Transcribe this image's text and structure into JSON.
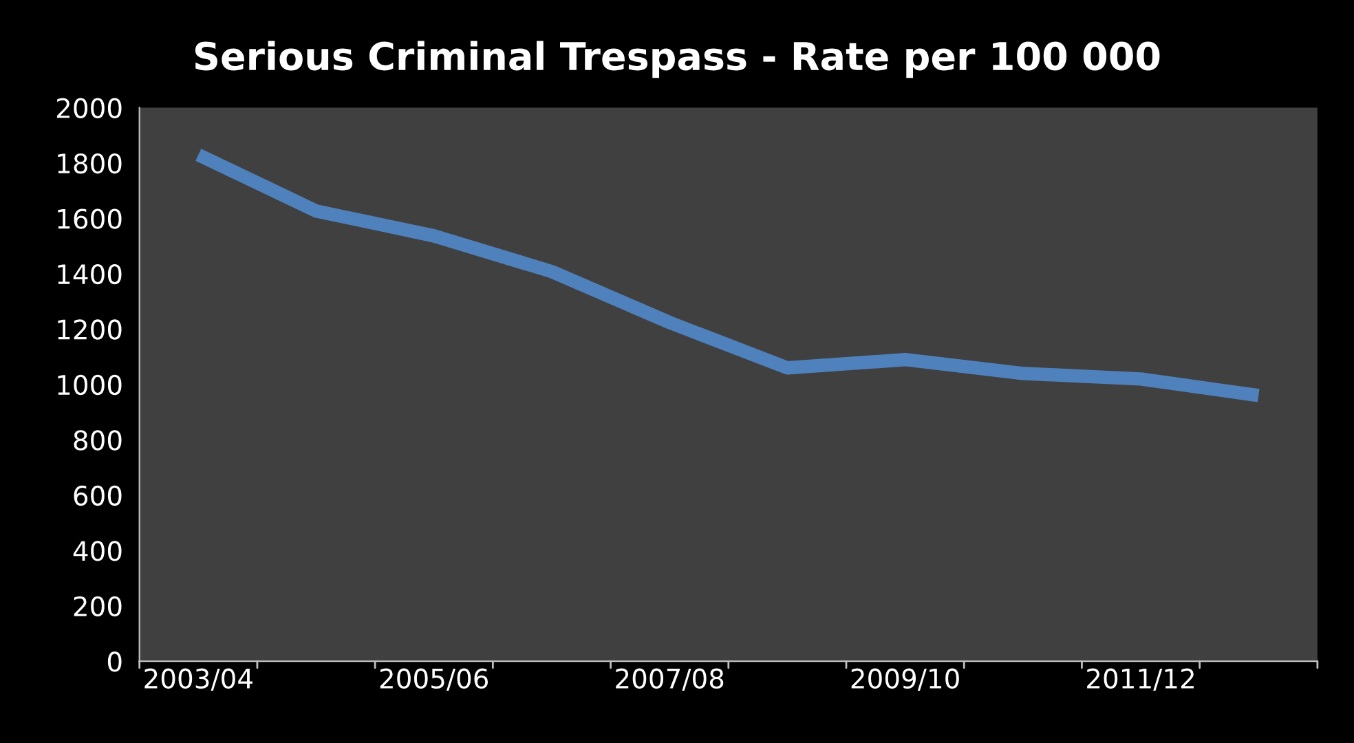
{
  "chart_data": {
    "type": "line",
    "title": "Serious Criminal Trespass - Rate per 100 000",
    "categories": [
      "2003/04",
      null,
      "2005/06",
      null,
      "2007/08",
      null,
      "2009/10",
      null,
      "2011/12",
      null
    ],
    "series": [
      {
        "color": "#4f81bd",
        "values": [
          1830,
          1627,
          1537,
          1408,
          1224,
          1060,
          1090,
          1040,
          1020,
          960
        ]
      }
    ],
    "ylim": [
      0,
      2000
    ],
    "yticks": [
      0,
      200,
      400,
      600,
      800,
      1000,
      1200,
      1400,
      1600,
      1800,
      2000
    ],
    "grid": false,
    "marker": "none",
    "line_style": "solid"
  }
}
